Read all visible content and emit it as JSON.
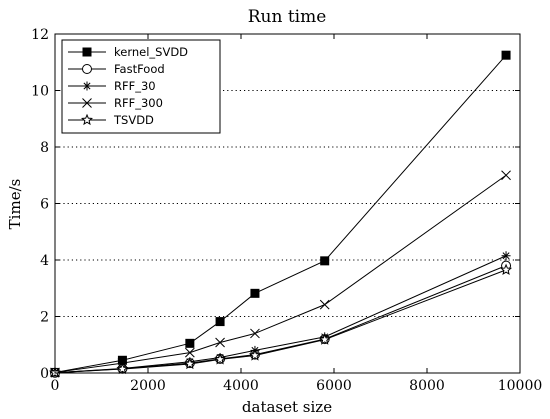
{
  "chart_data": {
    "type": "line",
    "title": "Run time",
    "xlabel": "dataset size",
    "ylabel": "Time/s",
    "xlim": [
      0,
      10000
    ],
    "ylim": [
      0,
      12
    ],
    "xticks": [
      0,
      2000,
      4000,
      6000,
      8000,
      10000
    ],
    "yticks": [
      0,
      2,
      4,
      6,
      8,
      10,
      12
    ],
    "grid": "horizontal dotted",
    "legend_position": "top-left",
    "series": [
      {
        "name": "kernel_SVDD",
        "marker": "filled-square",
        "x": [
          0,
          1450,
          2900,
          3550,
          4300,
          5800,
          9700
        ],
        "y": [
          0.02,
          0.45,
          1.05,
          1.82,
          2.82,
          3.97,
          11.25
        ]
      },
      {
        "name": "FastFood",
        "marker": "open-circle",
        "x": [
          0,
          1450,
          2900,
          3550,
          4300,
          5800,
          9700
        ],
        "y": [
          0.01,
          0.15,
          0.35,
          0.5,
          0.65,
          1.2,
          3.8
        ]
      },
      {
        "name": "RFF_30",
        "marker": "asterisk",
        "x": [
          0,
          1450,
          2900,
          3550,
          4300,
          5800,
          9700
        ],
        "y": [
          0.01,
          0.16,
          0.4,
          0.55,
          0.8,
          1.28,
          4.15
        ]
      },
      {
        "name": "RFF_300",
        "marker": "x",
        "x": [
          0,
          1450,
          2900,
          3550,
          4300,
          5800,
          9700
        ],
        "y": [
          0.02,
          0.35,
          0.72,
          1.08,
          1.4,
          2.42,
          7.0
        ]
      },
      {
        "name": "TSVDD",
        "marker": "star",
        "x": [
          0,
          1450,
          2900,
          3550,
          4300,
          5800,
          9700
        ],
        "y": [
          0.01,
          0.14,
          0.32,
          0.48,
          0.62,
          1.18,
          3.65
        ]
      }
    ]
  }
}
